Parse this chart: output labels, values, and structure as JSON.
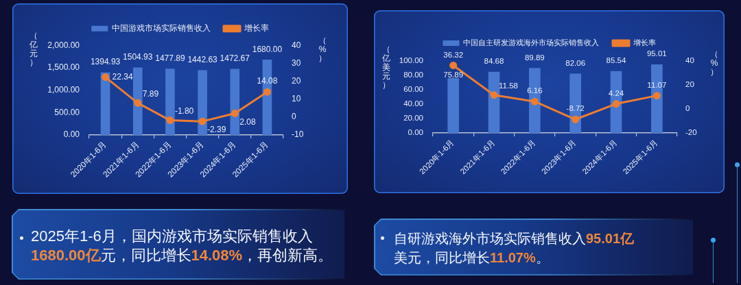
{
  "chart_data": [
    {
      "type": "bar",
      "categories": [
        "2020年1-6月",
        "2021年1-6月",
        "2022年1-6月",
        "2023年1-6月",
        "2024年1-6月",
        "2025年1-6月"
      ],
      "series": [
        {
          "name": "中国游戏市场实际销售收入",
          "type": "bar",
          "color": "#4878cf",
          "values": [
            1394.93,
            1504.93,
            1477.89,
            1442.63,
            1472.67,
            1680.0
          ],
          "value_labels": [
            "1394.93",
            "1504.93",
            "1477.89",
            "1442.63",
            "1472.67",
            "1680.00"
          ]
        },
        {
          "name": "增长率",
          "type": "line",
          "axis": "y2",
          "color": "#ed7d31",
          "values": [
            22.34,
            7.89,
            -1.8,
            -2.39,
            2.08,
            14.08
          ],
          "value_labels": [
            "22.34",
            "7.89",
            "-1.80",
            "-2.39",
            "2.08",
            "14.08"
          ]
        }
      ],
      "ylabel": "（亿元）",
      "y2label": "（%）",
      "ylim": [
        0,
        2000
      ],
      "yticks": [
        {
          "value": 0,
          "label": "0.00"
        },
        {
          "value": 500,
          "label": "500.00"
        },
        {
          "value": 1000,
          "label": "1,000.00"
        },
        {
          "value": 1500,
          "label": "1,500.00"
        },
        {
          "value": 2000,
          "label": "2,000.00"
        }
      ],
      "y2lim": [
        -10,
        40
      ],
      "y2ticks": [
        -10,
        0,
        10,
        20,
        30,
        40
      ],
      "legend": "top",
      "grid": false,
      "marker": "circle",
      "line_style": "solid"
    },
    {
      "type": "bar",
      "categories": [
        "2020年1-6月",
        "2021年1-6月",
        "2022年1-6月",
        "2023年1-6月",
        "2024年1-6月",
        "2025年1-6月"
      ],
      "series": [
        {
          "name": "中国自主研发游戏海外市场实际销售收入",
          "type": "bar",
          "color": "#4878cf",
          "values": [
            75.89,
            84.68,
            89.89,
            82.06,
            85.54,
            95.01
          ],
          "value_labels": [
            "75.89",
            "84.68",
            "89.89",
            "82.06",
            "85.54",
            "95.01"
          ]
        },
        {
          "name": "增长率",
          "type": "line",
          "axis": "y2",
          "color": "#ed7d31",
          "values": [
            36.32,
            11.58,
            6.16,
            -8.72,
            4.24,
            11.07
          ],
          "value_labels": [
            "36.32",
            "11.58",
            "6.16",
            "-8.72",
            "4.24",
            "11.07"
          ]
        }
      ],
      "ylabel": "（亿美元）",
      "y2label": "（%）",
      "ylim": [
        0,
        100
      ],
      "yticks": [
        {
          "value": 0,
          "label": "0.00"
        },
        {
          "value": 20,
          "label": "20.00"
        },
        {
          "value": 40,
          "label": "40.00"
        },
        {
          "value": 60,
          "label": "60.00"
        },
        {
          "value": 80,
          "label": "80.00"
        },
        {
          "value": 100,
          "label": "100.00"
        }
      ],
      "y2lim": [
        -20,
        40
      ],
      "y2ticks": [
        -20,
        0,
        20,
        40
      ],
      "legend": "top",
      "grid": false,
      "marker": "circle",
      "line_style": "solid"
    },
    {
      "type": "other",
      "annotations": [
        "2025年1-6月，国内游戏市场实际销售收入",
        "1680.00亿",
        "元，同比增长",
        "14.08%",
        "，再创新高。"
      ]
    },
    {
      "type": "other",
      "annotations": [
        "自研游戏海外市场实际销售收入",
        "95.01亿",
        "美元，同比增长",
        "11.07%",
        "。"
      ]
    }
  ]
}
